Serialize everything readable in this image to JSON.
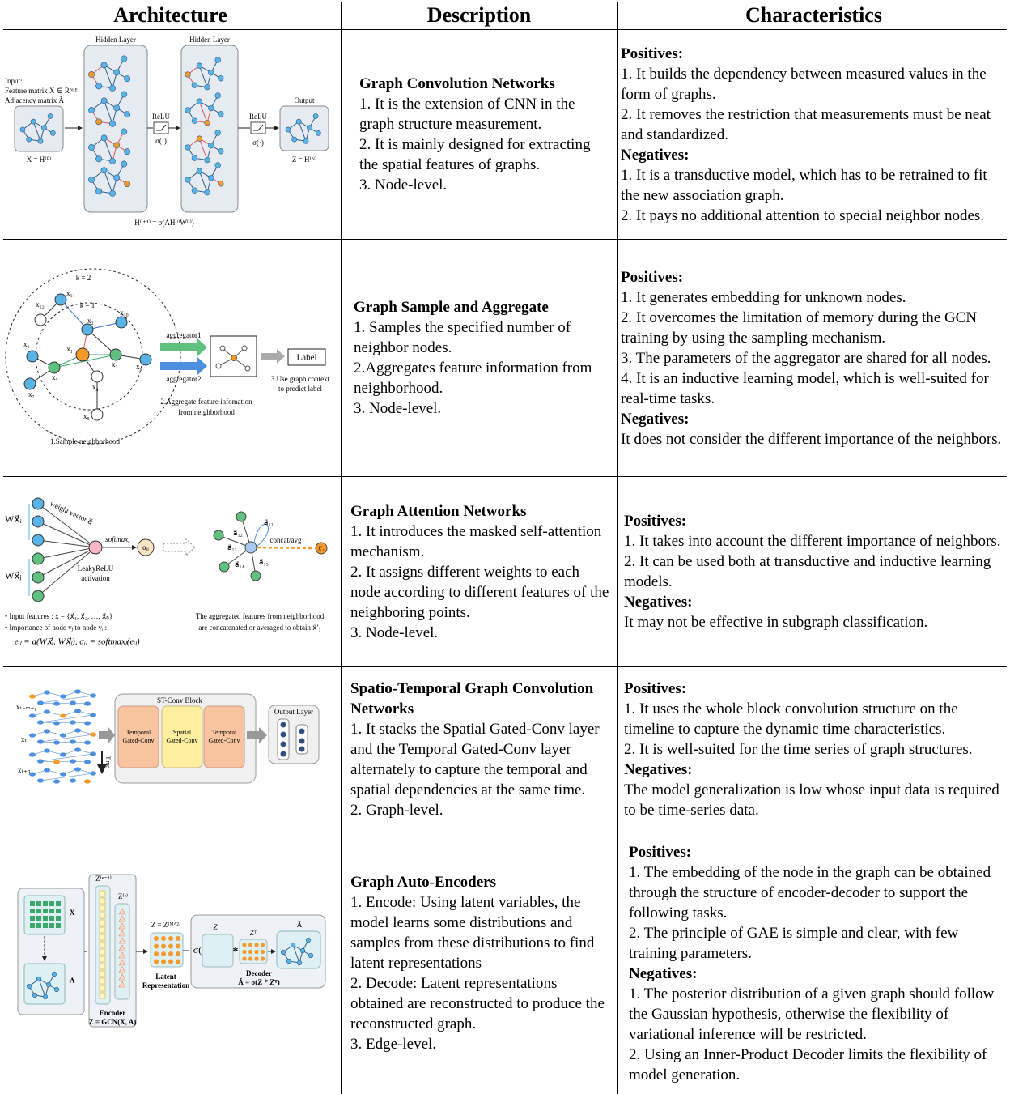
{
  "header": {
    "columns": [
      "Architecture",
      "Description",
      "Characteristics"
    ]
  },
  "rows": [
    {
      "architecture": {
        "labels": [
          "Input:",
          "Feature matrix X ∈ Rᴺˣᴱ",
          "Adjacency matrix Ã",
          "Hidden Layer",
          "Hidden Layer",
          "ReLU",
          "σ(·)",
          "ReLU",
          "σ(·)",
          "Output",
          "X = H⁽⁰⁾",
          "Z = H⁽ᴺ⁾",
          "H⁽ˡ⁺¹⁾ = σ(ÃH⁽ˡ⁾W⁽ˡ⁾)"
        ]
      },
      "description": {
        "title": "Graph Convolution Networks",
        "items": [
          "1. It is the extension of CNN in the graph structure measurement.",
          "2. It is mainly designed for extracting the spatial features of graphs.",
          "3. Node-level."
        ]
      },
      "characteristics": {
        "positives_label": "Positives:",
        "positives": [
          "1. It builds the dependency between measured values in the form of graphs.",
          "2. It removes the restriction that measurements must be neat and standardized."
        ],
        "negatives_label": "Negatives:",
        "negatives": [
          "1. It is a transductive model, which has to be retrained to fit the new association graph.",
          "2. It pays no additional attention to special neighbor nodes."
        ]
      }
    },
    {
      "architecture": {
        "labels": [
          "k = 2",
          "k = 1",
          "x₁",
          "x₂",
          "x₃",
          "x₄",
          "x₅",
          "x₆",
          "x₇",
          "x₈",
          "x₉",
          "x₁₀",
          "x₁₁",
          "x₁₂",
          "aggregator1",
          "aggregator2",
          "Label",
          "3.Use graph context",
          "to predict label",
          "2.Aggregate feature infomation",
          "from neighborhood",
          "1.Sample neighborhood"
        ]
      },
      "description": {
        "title": "Graph Sample and Aggregate",
        "items": [
          "1. Samples the specified number of neighbor nodes.",
          "2.Aggregates feature information from neighborhood.",
          "3. Node-level."
        ]
      },
      "characteristics": {
        "positives_label": "Positives:",
        "positives": [
          "1. It generates embedding for unknown nodes.",
          "2. It overcomes the limitation of memory during the GCN training by using the sampling mechanism.",
          "3. The parameters of the aggregator are shared for all nodes.",
          "4. It is an inductive learning model, which is well-suited for real-time tasks."
        ],
        "negatives_label": "Negatives:",
        "negatives": [
          "It does not consider the different importance of the neighbors."
        ]
      }
    },
    {
      "architecture": {
        "labels": [
          "Wx⃗ᵢ",
          "Wx⃗ⱼ",
          "weight vector a⃗",
          "softmaxⱼ",
          "αᵢⱼ",
          "LeakyReLU",
          "activation",
          "concat/avg",
          "x⃗′₁",
          "• Input features : x = {x⃗₁, x⃗₂, …, x⃗ₙ}",
          "• Importance of node vⱼ to node vᵢ :",
          "eᵢⱼ = a(Wx⃗ᵢ, Wx⃗ⱼ),  αᵢⱼ = softmaxⱼ(eᵢⱼ)",
          "The aggregated features from neighborhood",
          "are concatenated or averaged to obtain x⃗′₁",
          "a⃗₁₁",
          "a⃗₁₂",
          "a⃗₁₃",
          "a⃗₁₄",
          "a⃗₁₅"
        ]
      },
      "description": {
        "title": "Graph Attention Networks",
        "items": [
          "1. It introduces the masked self-attention mechanism.",
          "2. It assigns different weights to each node according to different features of the neighboring points.",
          "3. Node-level."
        ]
      },
      "characteristics": {
        "positives_label": "Positives:",
        "positives": [
          "1. It takes into account the different importance of neighbors.",
          "2. It can be used both at transductive and inductive learning models."
        ],
        "negatives_label": "Negatives:",
        "negatives": [
          "It may not be effective in subgraph classification."
        ]
      }
    },
    {
      "architecture": {
        "labels": [
          "ST-Conv Block",
          "Temporal",
          "Gated-Conv",
          "Spatial",
          "Gated-Conv",
          "Temporal",
          "Gated-Conv",
          "Output Layer",
          "Time",
          "xₜ₋ₘ₊₁",
          "xₜ",
          "xₜ₊ₕ"
        ]
      },
      "description": {
        "title": "Spatio-Temporal Graph Convolution Networks",
        "items": [
          "1. It stacks the Spatial Gated-Conv layer and the Temporal Gated-Conv layer alternately to capture the temporal and spatial dependencies at the same time.",
          "2. Graph-level."
        ]
      },
      "characteristics": {
        "positives_label": "Positives:",
        "positives": [
          "1. It uses the whole block convolution structure on the timeline to capture the dynamic time characteristics.",
          "2. It is well-suited for the time series of graph structures."
        ],
        "negatives_label": "Negatives:",
        "negatives": [
          "The model generalization is low whose input data is required to be time-series data."
        ]
      }
    },
    {
      "architecture": {
        "labels": [
          "Z⁽ᵉ⁻¹⁾",
          "Z⁽ᵉ⁾",
          "X",
          "A",
          "Encoder",
          "Z = GCN(X, A)",
          "Z = Z⁽ᴹᐟ²⁾",
          "Latent",
          "Representation",
          "σ(",
          "Z",
          "Zᵀ",
          "Ã",
          "Decoder",
          "Ã = σ(Z * Zᵀ)",
          "*"
        ]
      },
      "description": {
        "title": "Graph Auto-Encoders",
        "items": [
          "1. Encode: Using latent variables, the model learns some distributions and samples from these distributions to find latent representations",
          "2. Decode: Latent representations obtained are reconstructed to produce the reconstructed graph.",
          "3. Edge-level."
        ]
      },
      "characteristics": {
        "positives_label": "Positives:",
        "positives": [
          "1. The embedding of the node in the graph can be obtained through the structure of encoder-decoder to support the following tasks.",
          "2. The principle of GAE is simple and clear, with few training parameters."
        ],
        "negatives_label": "Negatives:",
        "negatives": [
          "1. The posterior distribution of a given graph should follow the Gaussian hypothesis, otherwise the flexibility of variational inference will be restricted.",
          "2. Using an Inner-Product Decoder limits the flexibility of model generation."
        ]
      }
    }
  ]
}
